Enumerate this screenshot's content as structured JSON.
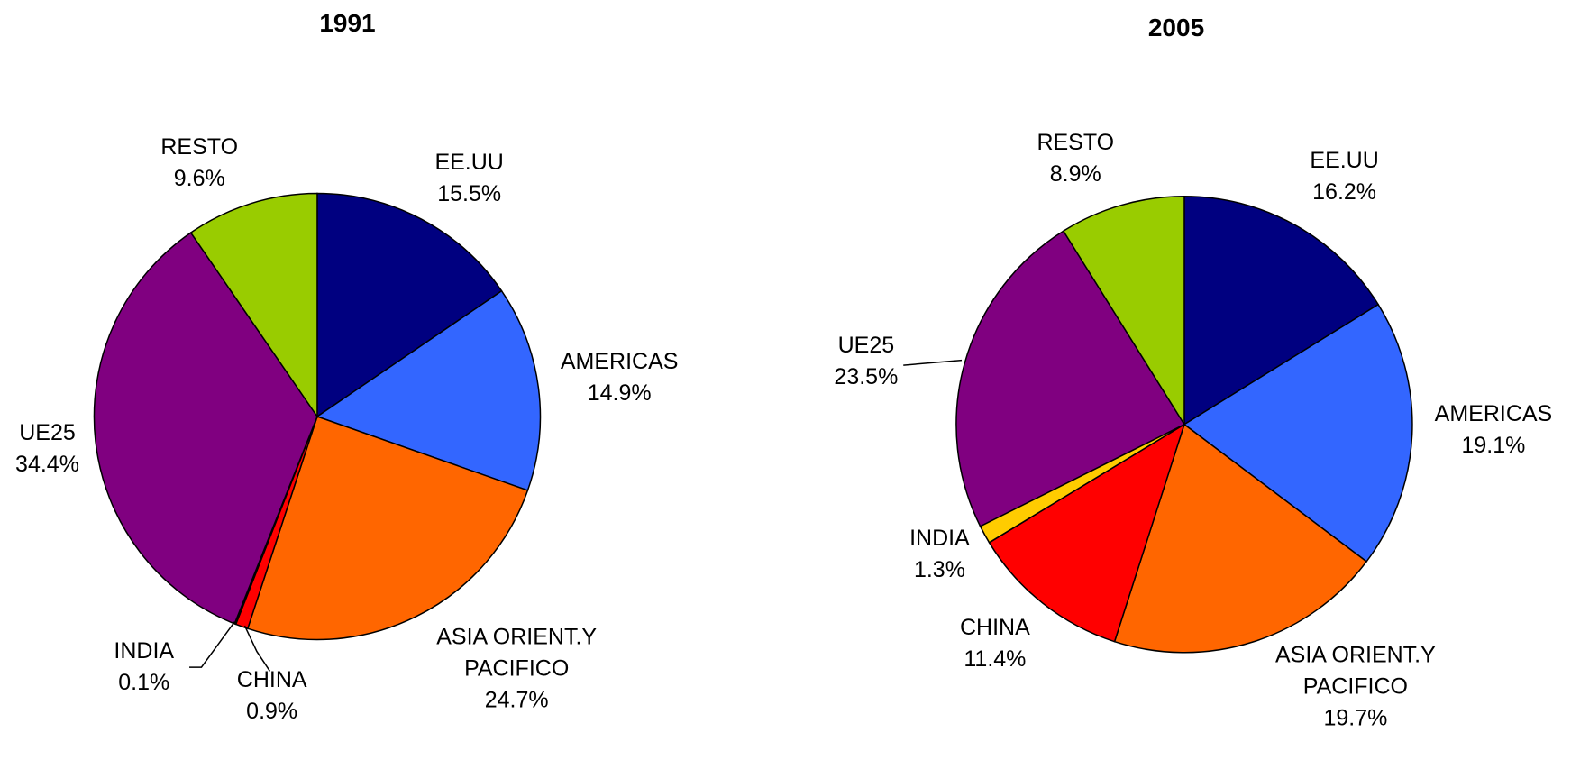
{
  "chart_data": [
    {
      "type": "pie",
      "title": "1991",
      "categories": [
        "EE.UU",
        "AMERICAS",
        "ASIA ORIENT.Y PACIFICO",
        "CHINA",
        "INDIA",
        "UE25",
        "RESTO"
      ],
      "values": [
        15.5,
        14.9,
        24.7,
        0.9,
        0.1,
        34.4,
        9.6
      ],
      "value_labels": [
        "15.5%",
        "14.9%",
        "24.7%",
        "0.9%",
        "0.1%",
        "34.4%",
        "9.6%"
      ],
      "colors": [
        "#000080",
        "#3366ff",
        "#ff6600",
        "#ff0000",
        "#ffcc00",
        "#800080",
        "#99cc00"
      ]
    },
    {
      "type": "pie",
      "title": "2005",
      "categories": [
        "EE.UU",
        "AMERICAS",
        "ASIA ORIENT.Y PACIFICO",
        "CHINA",
        "INDIA",
        "UE25",
        "RESTO"
      ],
      "values": [
        16.2,
        19.1,
        19.7,
        11.4,
        1.3,
        23.5,
        8.9
      ],
      "value_labels": [
        "16.2%",
        "19.1%",
        "19.7%",
        "11.4%",
        "1.3%",
        "23.5%",
        "8.9%"
      ],
      "colors": [
        "#000080",
        "#3366ff",
        "#ff6600",
        "#ff0000",
        "#ffcc00",
        "#800080",
        "#99cc00"
      ]
    }
  ]
}
